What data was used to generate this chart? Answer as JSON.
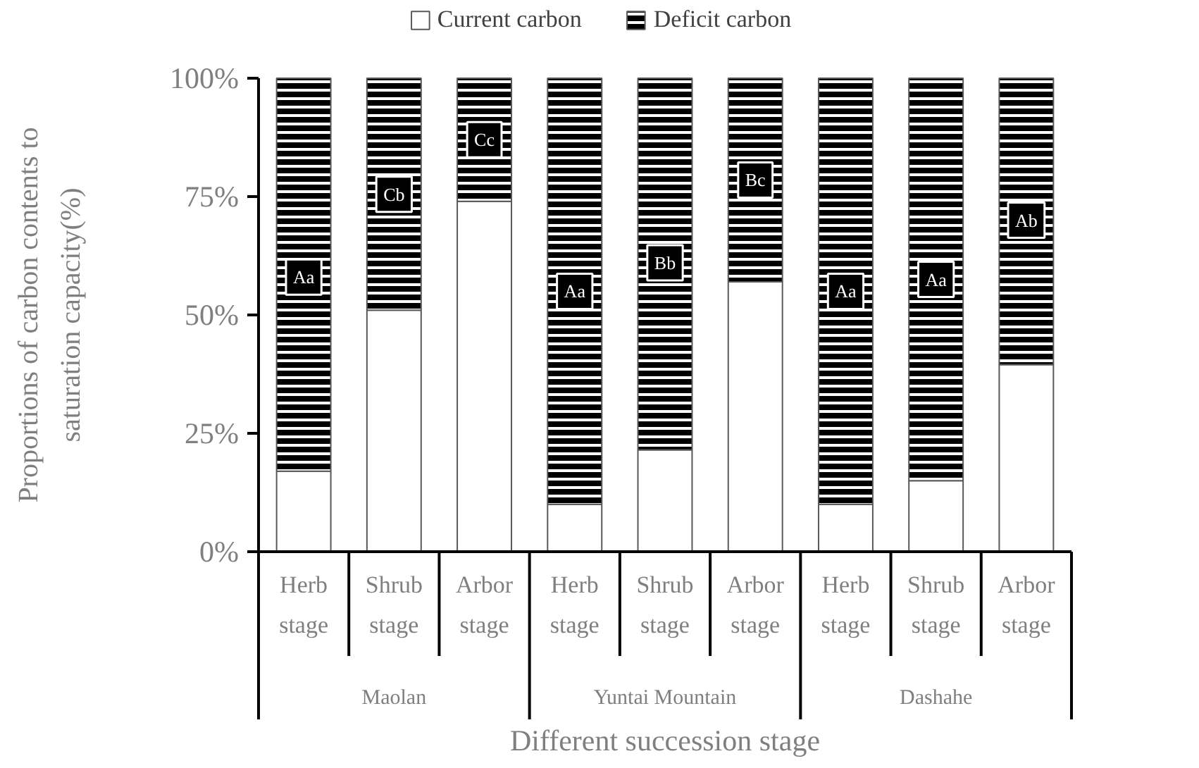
{
  "chart_data": {
    "type": "bar",
    "stacked": true,
    "xlabel": "Different succession stage",
    "ylabel": "Proportions of carbon contents to saturation capacity(%)",
    "categories": [
      "Herb stage",
      "Shrub stage",
      "Arbor stage",
      "Herb stage",
      "Shrub stage",
      "Arbor stage",
      "Herb stage",
      "Shrub stage",
      "Arbor stage"
    ],
    "series": [
      {
        "name": "Current carbon",
        "color": "#ffffff",
        "values": [
          17,
          51,
          74,
          10,
          21.5,
          57,
          10,
          15,
          39.5
        ]
      },
      {
        "name": "Deficit carbon",
        "color": "#000000",
        "values": [
          83,
          49,
          26,
          90,
          78.5,
          43,
          90,
          85,
          60.5
        ]
      }
    ],
    "ylim": [
      0,
      100
    ],
    "yticks": [
      {
        "value": 0,
        "label": "0%"
      },
      {
        "value": 25,
        "label": "25%"
      },
      {
        "value": 50,
        "label": "50%"
      },
      {
        "value": 75,
        "label": "75%"
      },
      {
        "value": 100,
        "label": "100%"
      }
    ],
    "grid": false,
    "legend": "top",
    "annotations": [
      {
        "text": "Aa",
        "y": 58
      },
      {
        "text": "Cb",
        "y": 75.5
      },
      {
        "text": "Cc",
        "y": 87
      },
      {
        "text": "Aa",
        "y": 55
      },
      {
        "text": "Bb",
        "y": 61
      },
      {
        "text": "Bc",
        "y": 78.5
      },
      {
        "text": "Aa",
        "y": 55
      },
      {
        "text": "Aa",
        "y": 57.5
      },
      {
        "text": "Ab",
        "y": 70
      },
      "Maolan",
      "Yuntai Mountain",
      "Dashahe"
    ]
  }
}
